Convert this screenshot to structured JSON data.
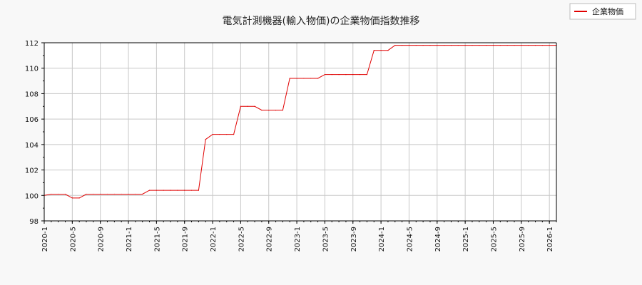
{
  "chart_data": {
    "type": "line",
    "title": "電気計測機器(輸入物価)の企業物価指数推移",
    "xlabel": "",
    "ylabel": "",
    "ylim": [
      98,
      112
    ],
    "yticks": [
      98,
      100,
      102,
      104,
      106,
      108,
      110,
      112
    ],
    "xticks": [
      "2020-1",
      "2020-5",
      "2020-9",
      "2021-1",
      "2021-5",
      "2021-9",
      "2022-1",
      "2022-5",
      "2022-9",
      "2023-1",
      "2023-5",
      "2023-9",
      "2024-1",
      "2024-5",
      "2024-9",
      "2025-1",
      "2025-5",
      "2025-9",
      "2026-1"
    ],
    "x_start": "2020-1",
    "x_end": "2026-2",
    "grid": true,
    "legend_position": "top-right",
    "colors": {
      "series": "#e00000",
      "grid": "#c8c8c8",
      "background": "#ffffff",
      "page": "#f8f8f8"
    },
    "series": [
      {
        "name": "企業物価",
        "x": [
          "2020-1",
          "2020-2",
          "2020-3",
          "2020-4",
          "2020-5",
          "2020-6",
          "2020-7",
          "2020-8",
          "2020-9",
          "2020-10",
          "2020-11",
          "2020-12",
          "2021-1",
          "2021-2",
          "2021-3",
          "2021-4",
          "2021-5",
          "2021-6",
          "2021-7",
          "2021-8",
          "2021-9",
          "2021-10",
          "2021-11",
          "2021-12",
          "2022-1",
          "2022-2",
          "2022-3",
          "2022-4",
          "2022-5",
          "2022-6",
          "2022-7",
          "2022-8",
          "2022-9",
          "2022-10",
          "2022-11",
          "2022-12",
          "2023-1",
          "2023-2",
          "2023-3",
          "2023-4",
          "2023-5",
          "2023-6",
          "2023-7",
          "2023-8",
          "2023-9",
          "2023-10",
          "2023-11",
          "2023-12",
          "2024-1",
          "2024-2",
          "2024-3",
          "2024-4",
          "2024-5",
          "2024-6",
          "2024-7",
          "2024-8",
          "2024-9",
          "2024-10",
          "2024-11",
          "2024-12",
          "2025-1",
          "2025-2",
          "2025-3",
          "2025-4",
          "2025-5",
          "2025-6",
          "2025-7",
          "2025-8",
          "2025-9",
          "2025-10",
          "2025-11",
          "2025-12",
          "2026-1",
          "2026-2"
        ],
        "values": [
          100.0,
          100.1,
          100.1,
          100.1,
          99.8,
          99.8,
          100.1,
          100.1,
          100.1,
          100.1,
          100.1,
          100.1,
          100.1,
          100.1,
          100.1,
          100.4,
          100.4,
          100.4,
          100.4,
          100.4,
          100.4,
          100.4,
          100.4,
          104.4,
          104.8,
          104.8,
          104.8,
          104.8,
          107.0,
          107.0,
          107.0,
          106.7,
          106.7,
          106.7,
          106.7,
          109.2,
          109.2,
          109.2,
          109.2,
          109.2,
          109.5,
          109.5,
          109.5,
          109.5,
          109.5,
          109.5,
          109.5,
          111.4,
          111.4,
          111.4,
          111.8,
          111.8,
          111.8,
          111.8,
          111.8,
          111.8,
          111.8,
          111.8,
          111.8,
          111.8,
          111.8,
          111.8,
          111.8,
          111.8,
          111.8,
          111.8,
          111.8,
          111.8,
          111.8,
          111.8,
          111.8,
          111.8,
          111.8,
          111.8
        ]
      }
    ]
  }
}
